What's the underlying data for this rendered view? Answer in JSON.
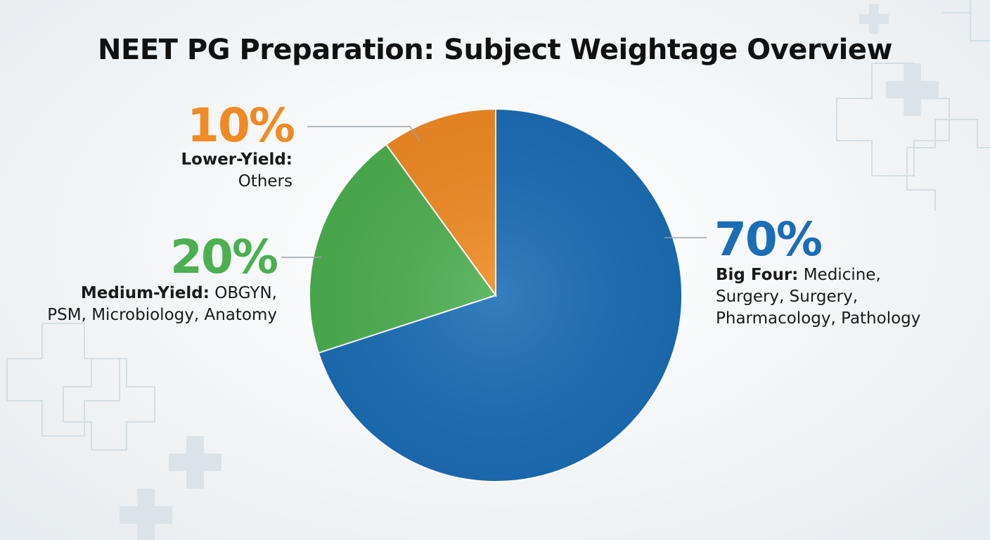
{
  "chart_data": {
    "type": "pie",
    "title": "NEET PG Preparation: Subject Weightage Overview",
    "categories": [
      "Big Four:",
      "Medium-Yield:",
      "Lower-Yield:"
    ],
    "descriptions": [
      [
        "Medicine,",
        "Surgery, Surgery,",
        "Pharmacology, Pathology"
      ],
      [
        "OBGYN,",
        "PSM, Microbiology, Anatomy"
      ],
      [
        "Others"
      ]
    ],
    "values": [
      70,
      20,
      10
    ],
    "value_labels": [
      "70%",
      "20%",
      "10%"
    ],
    "colors": [
      "#1b6db5",
      "#4caf50",
      "#f08a24"
    ]
  }
}
